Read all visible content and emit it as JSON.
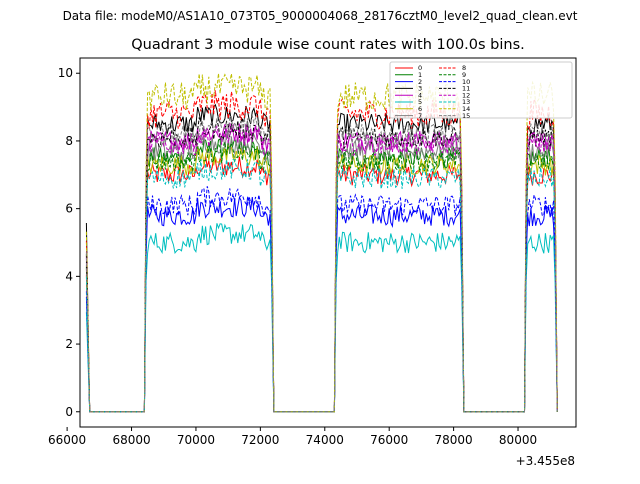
{
  "chart_data": {
    "type": "line",
    "suptitle": "Data file: modeM0/AS1A10_073T05_9000004068_28176cztM0_level2_quad_clean.evt",
    "title": "Quadrant 3 module wise count rates with 100.0s bins.",
    "xlabel": "",
    "ylabel": "",
    "x_offset_label": "+3.455e8",
    "xlim": [
      66400,
      81800
    ],
    "ylim": [
      -0.45,
      10.45
    ],
    "xticks": [
      66000,
      68000,
      70000,
      72000,
      74000,
      76000,
      78000,
      80000
    ],
    "xtick_labels": [
      "66000",
      "68000",
      "70000",
      "72000",
      "74000",
      "76000",
      "78000",
      "80000"
    ],
    "yticks": [
      0,
      2,
      4,
      6,
      8,
      10
    ],
    "ytick_labels": [
      "0",
      "2",
      "4",
      "6",
      "8",
      "10"
    ],
    "legend_position": "top-right",
    "segments": [
      {
        "start": 66600,
        "end": 66700
      },
      {
        "start": 68400,
        "end": 72400
      },
      {
        "start": 74300,
        "end": 78300
      },
      {
        "start": 80200,
        "end": 81200
      }
    ],
    "series": [
      {
        "name": "0",
        "color": "#ff0000",
        "dash": "solid",
        "level": 7.0
      },
      {
        "name": "1",
        "color": "#008000",
        "dash": "solid",
        "level": 7.5
      },
      {
        "name": "2",
        "color": "#0000ff",
        "dash": "solid",
        "level": 5.8
      },
      {
        "name": "3",
        "color": "#000000",
        "dash": "solid",
        "level": 8.5
      },
      {
        "name": "4",
        "color": "#bf00bf",
        "dash": "solid",
        "level": 8.0
      },
      {
        "name": "5",
        "color": "#00bfbf",
        "dash": "solid",
        "level": 5.0
      },
      {
        "name": "6",
        "color": "#bfbf00",
        "dash": "solid",
        "level": 7.3
      },
      {
        "name": "7",
        "color": "#808080",
        "dash": "solid",
        "level": 7.7
      },
      {
        "name": "8",
        "color": "#ff0000",
        "dash": "dashed",
        "level": 8.8
      },
      {
        "name": "9",
        "color": "#008000",
        "dash": "dashed",
        "level": 7.4
      },
      {
        "name": "10",
        "color": "#0000ff",
        "dash": "dashed",
        "level": 6.1
      },
      {
        "name": "11",
        "color": "#000000",
        "dash": "dashed",
        "level": 8.1
      },
      {
        "name": "12",
        "color": "#bf00bf",
        "dash": "dashed",
        "level": 7.9
      },
      {
        "name": "13",
        "color": "#00bfbf",
        "dash": "dashed",
        "level": 6.9
      },
      {
        "name": "14",
        "color": "#bfbf00",
        "dash": "dashed",
        "level": 9.3
      },
      {
        "name": "15",
        "color": "#808080",
        "dash": "dashed",
        "level": 8.2
      }
    ]
  }
}
